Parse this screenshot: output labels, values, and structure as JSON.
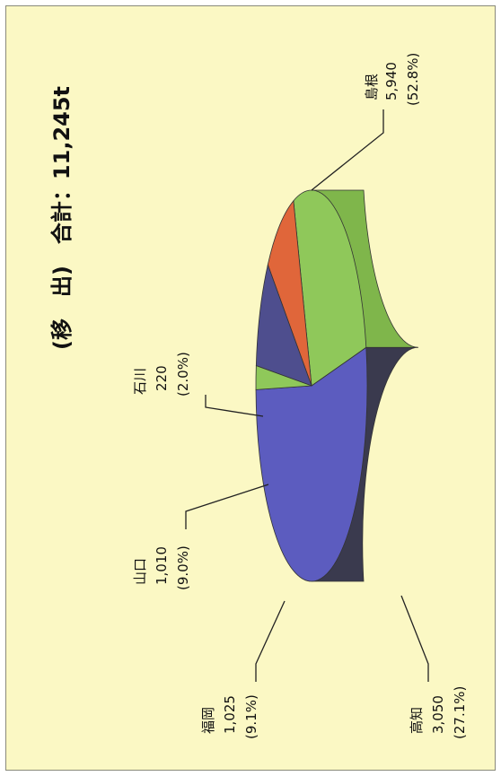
{
  "chart_data": {
    "type": "pie",
    "title": "(移　出)　合計：11,245t",
    "unit": "t",
    "slices": [
      {
        "name": "島根",
        "value": "5,940",
        "share": "(52.8%)",
        "number": 5940,
        "percent": 52.8,
        "color": "#5c5cbf",
        "side": "#3a3a4e"
      },
      {
        "name": "高知",
        "value": "3,050",
        "share": "(27.1%)",
        "number": 3050,
        "percent": 27.1,
        "color": "#8fc85a",
        "side": "#7fb64b"
      },
      {
        "name": "福岡",
        "value": "1,025",
        "share": "(9.1%)",
        "number": 1025,
        "percent": 9.1,
        "color": "#e0663a",
        "side": "#c4532e"
      },
      {
        "name": "山口",
        "value": "1,010",
        "share": "(9.0%)",
        "number": 1010,
        "percent": 9.0,
        "color": "#4e4e8e",
        "side": "#3e3e6e"
      },
      {
        "name": "石川",
        "value": "220",
        "share": "(2.0%)",
        "number": 220,
        "percent": 2.0,
        "color": "#8fc85a",
        "side": "#7fb64b"
      }
    ]
  }
}
